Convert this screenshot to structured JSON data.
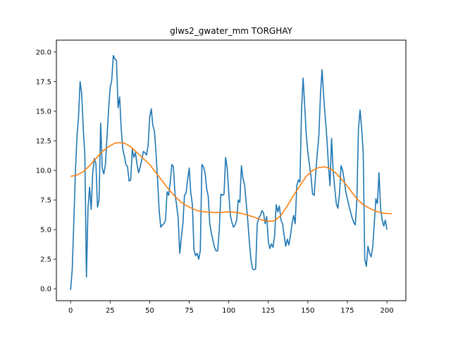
{
  "chart_data": {
    "type": "line",
    "title": "glws2_gwater_mm TORGHAY",
    "xlabel": "",
    "ylabel": "",
    "xlim": [
      -9,
      212
    ],
    "ylim": [
      -1.0,
      21.0
    ],
    "xticks": [
      0,
      25,
      50,
      75,
      100,
      125,
      150,
      175,
      200
    ],
    "yticks": [
      0.0,
      2.5,
      5.0,
      7.5,
      10.0,
      12.5,
      15.0,
      17.5,
      20.0
    ],
    "ytick_labels": [
      "0.0",
      "2.5",
      "5.0",
      "7.5",
      "10.0",
      "12.5",
      "15.0",
      "17.5",
      "20.0"
    ],
    "grid": false,
    "legend": "none",
    "series": [
      {
        "color": "#1f77b4",
        "points": [
          [
            0,
            -0.1
          ],
          [
            1,
            1.6
          ],
          [
            2,
            5.5
          ],
          [
            3,
            9.8
          ],
          [
            4,
            12.8
          ],
          [
            5,
            14.5
          ],
          [
            6,
            17.5
          ],
          [
            7,
            16.5
          ],
          [
            8,
            13.5
          ],
          [
            9,
            11.3
          ],
          [
            10,
            1.0
          ],
          [
            11,
            6.8
          ],
          [
            12,
            8.6
          ],
          [
            13,
            6.7
          ],
          [
            14,
            9.8
          ],
          [
            15,
            11.0
          ],
          [
            16,
            10.6
          ],
          [
            17,
            6.9
          ],
          [
            18,
            7.5
          ],
          [
            19,
            14.0
          ],
          [
            20,
            10.2
          ],
          [
            21,
            9.7
          ],
          [
            22,
            10.5
          ],
          [
            23,
            12.8
          ],
          [
            24,
            15.1
          ],
          [
            25,
            17.0
          ],
          [
            26,
            17.6
          ],
          [
            27,
            19.7
          ],
          [
            28,
            19.4
          ],
          [
            29,
            19.3
          ],
          [
            30,
            15.3
          ],
          [
            31,
            16.2
          ],
          [
            32,
            13.5
          ],
          [
            33,
            11.8
          ],
          [
            34,
            11.2
          ],
          [
            35,
            10.5
          ],
          [
            36,
            10.3
          ],
          [
            37,
            9.1
          ],
          [
            38,
            9.2
          ],
          [
            39,
            11.8
          ],
          [
            40,
            11.1
          ],
          [
            41,
            11.5
          ],
          [
            42,
            10.5
          ],
          [
            43,
            9.8
          ],
          [
            44,
            10.3
          ],
          [
            45,
            10.9
          ],
          [
            46,
            11.6
          ],
          [
            47,
            11.5
          ],
          [
            48,
            11.3
          ],
          [
            49,
            12.1
          ],
          [
            50,
            14.5
          ],
          [
            51,
            15.2
          ],
          [
            52,
            13.8
          ],
          [
            53,
            13.3
          ],
          [
            54,
            11.5
          ],
          [
            55,
            9.2
          ],
          [
            56,
            6.6
          ],
          [
            57,
            5.2
          ],
          [
            58,
            5.4
          ],
          [
            59,
            5.5
          ],
          [
            60,
            5.8
          ],
          [
            61,
            8.2
          ],
          [
            62,
            7.9
          ],
          [
            63,
            9.0
          ],
          [
            64,
            10.5
          ],
          [
            65,
            10.3
          ],
          [
            66,
            8.0
          ],
          [
            67,
            7.1
          ],
          [
            68,
            6.0
          ],
          [
            69,
            3.0
          ],
          [
            70,
            4.3
          ],
          [
            71,
            5.5
          ],
          [
            72,
            7.9
          ],
          [
            73,
            8.1
          ],
          [
            74,
            9.2
          ],
          [
            75,
            10.2
          ],
          [
            76,
            8.1
          ],
          [
            77,
            7.1
          ],
          [
            78,
            3.3
          ],
          [
            79,
            2.8
          ],
          [
            80,
            3.0
          ],
          [
            81,
            2.5
          ],
          [
            82,
            3.2
          ],
          [
            83,
            10.5
          ],
          [
            84,
            10.3
          ],
          [
            85,
            9.8
          ],
          [
            86,
            8.5
          ],
          [
            87,
            7.8
          ],
          [
            88,
            5.5
          ],
          [
            89,
            4.7
          ],
          [
            90,
            4.1
          ],
          [
            91,
            3.5
          ],
          [
            92,
            3.2
          ],
          [
            93,
            3.2
          ],
          [
            94,
            5.0
          ],
          [
            95,
            8.0
          ],
          [
            96,
            7.9
          ],
          [
            97,
            8.0
          ],
          [
            98,
            11.1
          ],
          [
            99,
            10.2
          ],
          [
            100,
            8.1
          ],
          [
            101,
            6.2
          ],
          [
            102,
            5.6
          ],
          [
            103,
            5.2
          ],
          [
            104,
            5.4
          ],
          [
            105,
            5.8
          ],
          [
            106,
            7.5
          ],
          [
            107,
            7.3
          ],
          [
            108,
            10.4
          ],
          [
            109,
            9.3
          ],
          [
            110,
            8.8
          ],
          [
            111,
            7.3
          ],
          [
            112,
            5.8
          ],
          [
            113,
            4.0
          ],
          [
            114,
            2.5
          ],
          [
            115,
            1.7
          ],
          [
            116,
            1.6
          ],
          [
            117,
            1.7
          ],
          [
            118,
            5.5
          ],
          [
            119,
            6.0
          ],
          [
            120,
            6.2
          ],
          [
            121,
            6.6
          ],
          [
            122,
            6.4
          ],
          [
            123,
            5.5
          ],
          [
            124,
            6.1
          ],
          [
            125,
            4.0
          ],
          [
            126,
            3.4
          ],
          [
            127,
            3.8
          ],
          [
            128,
            3.5
          ],
          [
            129,
            4.5
          ],
          [
            130,
            7.1
          ],
          [
            131,
            6.5
          ],
          [
            132,
            7.0
          ],
          [
            133,
            5.8
          ],
          [
            134,
            5.5
          ],
          [
            135,
            4.5
          ],
          [
            136,
            3.6
          ],
          [
            137,
            4.2
          ],
          [
            138,
            3.7
          ],
          [
            139,
            4.5
          ],
          [
            140,
            5.5
          ],
          [
            141,
            6.2
          ],
          [
            142,
            5.5
          ],
          [
            143,
            8.7
          ],
          [
            144,
            9.2
          ],
          [
            145,
            9.0
          ],
          [
            146,
            15.0
          ],
          [
            147,
            17.8
          ],
          [
            148,
            15.5
          ],
          [
            149,
            13.0
          ],
          [
            150,
            11.5
          ],
          [
            151,
            10.5
          ],
          [
            152,
            9.5
          ],
          [
            153,
            8.0
          ],
          [
            154,
            7.9
          ],
          [
            155,
            9.8
          ],
          [
            156,
            11.5
          ],
          [
            157,
            13.0
          ],
          [
            158,
            16.5
          ],
          [
            159,
            18.5
          ],
          [
            160,
            16.3
          ],
          [
            161,
            14.5
          ],
          [
            162,
            12.8
          ],
          [
            163,
            10.5
          ],
          [
            164,
            8.7
          ],
          [
            165,
            12.7
          ],
          [
            166,
            10.0
          ],
          [
            167,
            8.5
          ],
          [
            168,
            7.2
          ],
          [
            169,
            6.8
          ],
          [
            170,
            8.0
          ],
          [
            171,
            10.4
          ],
          [
            172,
            10.0
          ],
          [
            173,
            9.2
          ],
          [
            174,
            8.2
          ],
          [
            175,
            7.6
          ],
          [
            176,
            7.0
          ],
          [
            177,
            6.5
          ],
          [
            178,
            6.0
          ],
          [
            179,
            5.6
          ],
          [
            180,
            5.4
          ],
          [
            181,
            7.5
          ],
          [
            182,
            13.5
          ],
          [
            183,
            15.1
          ],
          [
            184,
            13.6
          ],
          [
            185,
            11.5
          ],
          [
            186,
            2.5
          ],
          [
            187,
            1.9
          ],
          [
            188,
            3.6
          ],
          [
            189,
            3.0
          ],
          [
            190,
            2.7
          ],
          [
            191,
            3.5
          ],
          [
            192,
            5.5
          ],
          [
            193,
            7.6
          ],
          [
            194,
            7.2
          ],
          [
            195,
            9.8
          ],
          [
            196,
            6.8
          ],
          [
            197,
            5.8
          ],
          [
            198,
            5.3
          ],
          [
            199,
            5.8
          ],
          [
            200,
            5.0
          ]
        ]
      },
      {
        "color": "#ff7f0e",
        "points": [
          [
            0,
            9.5
          ],
          [
            4,
            9.6
          ],
          [
            8,
            9.9
          ],
          [
            12,
            10.4
          ],
          [
            16,
            11.0
          ],
          [
            20,
            11.6
          ],
          [
            24,
            12.0
          ],
          [
            28,
            12.3
          ],
          [
            31,
            12.35
          ],
          [
            34,
            12.3
          ],
          [
            38,
            12.0
          ],
          [
            42,
            11.5
          ],
          [
            46,
            11.0
          ],
          [
            50,
            10.5
          ],
          [
            54,
            9.8
          ],
          [
            58,
            9.1
          ],
          [
            62,
            8.4
          ],
          [
            66,
            7.8
          ],
          [
            70,
            7.3
          ],
          [
            75,
            6.9
          ],
          [
            80,
            6.6
          ],
          [
            85,
            6.5
          ],
          [
            90,
            6.45
          ],
          [
            95,
            6.45
          ],
          [
            100,
            6.5
          ],
          [
            105,
            6.45
          ],
          [
            110,
            6.3
          ],
          [
            115,
            6.1
          ],
          [
            120,
            5.85
          ],
          [
            125,
            5.7
          ],
          [
            129,
            5.75
          ],
          [
            133,
            6.2
          ],
          [
            137,
            7.0
          ],
          [
            141,
            7.9
          ],
          [
            145,
            8.7
          ],
          [
            149,
            9.5
          ],
          [
            153,
            10.0
          ],
          [
            157,
            10.25
          ],
          [
            161,
            10.3
          ],
          [
            165,
            10.1
          ],
          [
            169,
            9.6
          ],
          [
            173,
            9.0
          ],
          [
            177,
            8.3
          ],
          [
            181,
            7.6
          ],
          [
            185,
            7.1
          ],
          [
            189,
            6.8
          ],
          [
            193,
            6.55
          ],
          [
            197,
            6.4
          ],
          [
            201,
            6.35
          ],
          [
            203,
            6.35
          ]
        ]
      }
    ]
  }
}
